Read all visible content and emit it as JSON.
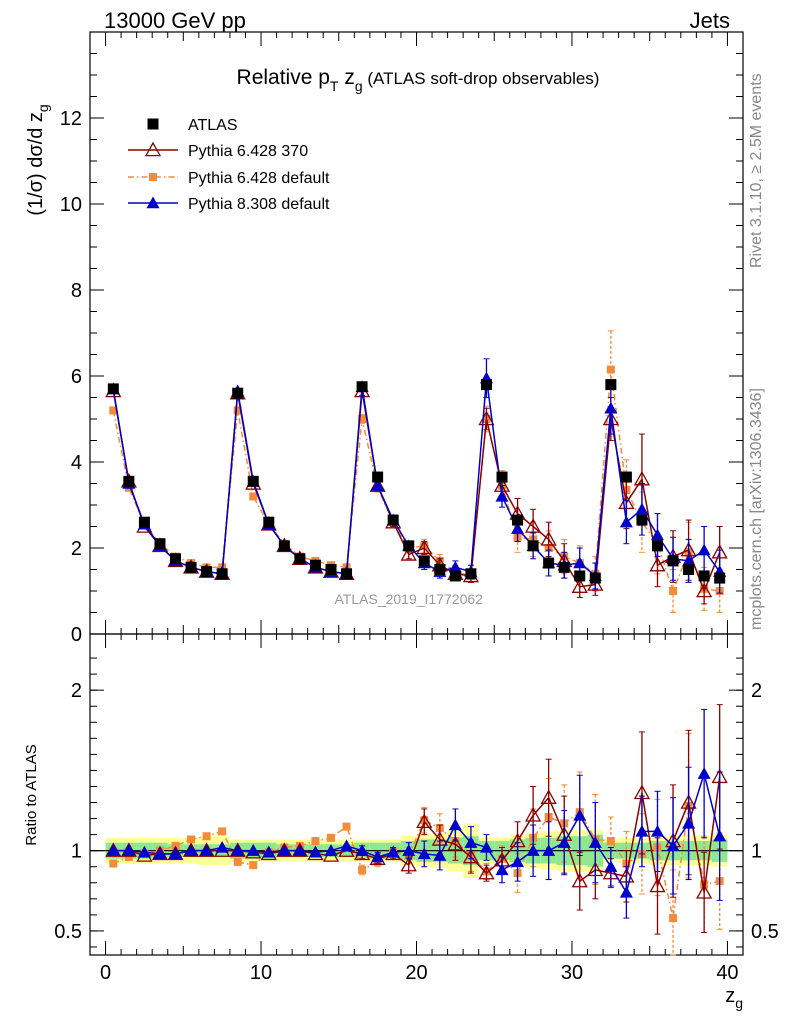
{
  "header": {
    "left": "13000 GeV pp",
    "right": "Jets"
  },
  "side_labels": {
    "rivet": "Rivet 3.1.10, ≥ 2.5M events",
    "mcplots": "mcplots.cern.ch [arXiv:1306.3436]"
  },
  "chart_data": {
    "type": "scatter",
    "title": {
      "prefix": "Relative p",
      "sub1": "T",
      "mid": " z",
      "sub2": "g",
      "suffix": " (ATLAS soft-drop observables)"
    },
    "ylabel_main": {
      "pre": "(1/σ) dσ/d z",
      "sub": "g"
    },
    "ylabel_ratio": "Ratio to ATLAS",
    "xlabel": {
      "pre": "z",
      "sub": "g"
    },
    "watermark": "ATLAS_2019_I1772062",
    "xlim": [
      -1,
      41
    ],
    "ylim_main": [
      0,
      14
    ],
    "ylim_ratio": [
      0.35,
      2.35
    ],
    "x_ticks": [
      0,
      10,
      20,
      30,
      40
    ],
    "x_tick_labels": [
      "0",
      "10",
      "20",
      "30",
      "40"
    ],
    "y_ticks_main": [
      0,
      2,
      4,
      6,
      8,
      10,
      12
    ],
    "y_tick_labels_main": [
      "0",
      "2",
      "4",
      "6",
      "8",
      "10",
      "12"
    ],
    "y_ticks_ratio": [
      0.5,
      1,
      2
    ],
    "y_tick_labels_ratio": [
      "0.5",
      "1",
      "2"
    ],
    "x": [
      0.5,
      1.5,
      2.5,
      3.5,
      4.5,
      5.5,
      6.5,
      7.5,
      8.5,
      9.5,
      10.5,
      11.5,
      12.5,
      13.5,
      14.5,
      15.5,
      16.5,
      17.5,
      18.5,
      19.5,
      20.5,
      21.5,
      22.5,
      23.5,
      24.5,
      25.5,
      26.5,
      27.5,
      28.5,
      29.5,
      30.5,
      31.5,
      32.5,
      33.5,
      34.5,
      35.5,
      36.5,
      37.5,
      38.5,
      39.5
    ],
    "data_band": {
      "green": [
        0.05,
        0.05,
        0.05,
        0.05,
        0.04,
        0.04,
        0.04,
        0.04,
        0.05,
        0.05,
        0.05,
        0.04,
        0.04,
        0.04,
        0.04,
        0.04,
        0.05,
        0.05,
        0.05,
        0.06,
        0.07,
        0.07,
        0.08,
        0.09,
        0.06,
        0.06,
        0.07,
        0.08,
        0.08,
        0.09,
        0.09,
        0.1,
        0.05,
        0.05,
        0.05,
        0.06,
        0.06,
        0.06,
        0.06,
        0.07
      ],
      "yellow": [
        0.08,
        0.08,
        0.08,
        0.08,
        0.08,
        0.08,
        0.09,
        0.09,
        0.07,
        0.07,
        0.07,
        0.07,
        0.07,
        0.07,
        0.07,
        0.07,
        0.07,
        0.07,
        0.07,
        0.09,
        0.1,
        0.11,
        0.13,
        0.17,
        0.08,
        0.08,
        0.1,
        0.11,
        0.12,
        0.13,
        0.13,
        0.13,
        0.07,
        0.08,
        0.08,
        0.09,
        0.09,
        0.09,
        0.09,
        0.1
      ]
    },
    "series": [
      {
        "name": "ATLAS",
        "color": "#000000",
        "marker": "square",
        "line": "none",
        "values": [
          5.7,
          3.55,
          2.6,
          2.1,
          1.75,
          1.55,
          1.45,
          1.4,
          5.6,
          3.55,
          2.6,
          2.05,
          1.75,
          1.6,
          1.5,
          1.4,
          5.75,
          3.65,
          2.65,
          2.05,
          1.7,
          1.5,
          1.35,
          1.4,
          5.8,
          3.65,
          2.65,
          2.05,
          1.65,
          1.55,
          1.35,
          1.3,
          5.8,
          3.65,
          2.65,
          2.05,
          1.7,
          1.5,
          1.35,
          1.3
        ],
        "errors": [
          0.05,
          0.05,
          0.04,
          0.03,
          0.03,
          0.03,
          0.03,
          0.03,
          0.05,
          0.05,
          0.04,
          0.04,
          0.03,
          0.03,
          0.03,
          0.03,
          0.07,
          0.06,
          0.05,
          0.05,
          0.05,
          0.05,
          0.05,
          0.05,
          0.1,
          0.08,
          0.07,
          0.06,
          0.06,
          0.06,
          0.06,
          0.06,
          0.1,
          0.09,
          0.08,
          0.07,
          0.07,
          0.07,
          0.07,
          0.07
        ],
        "ratio": [
          1,
          1,
          1,
          1,
          1,
          1,
          1,
          1,
          1,
          1,
          1,
          1,
          1,
          1,
          1,
          1,
          1,
          1,
          1,
          1,
          1,
          1,
          1,
          1,
          1,
          1,
          1,
          1,
          1,
          1,
          1,
          1,
          1,
          1,
          1,
          1,
          1,
          1,
          1,
          1
        ]
      },
      {
        "name": "Pythia 6.428 370",
        "color": "#8b0000",
        "marker": "triangle-open",
        "line": "solid",
        "values": [
          5.65,
          3.55,
          2.5,
          2.05,
          1.7,
          1.55,
          1.45,
          1.4,
          5.6,
          3.5,
          2.55,
          2.05,
          1.75,
          1.55,
          1.45,
          1.4,
          5.65,
          3.45,
          2.6,
          1.85,
          2.0,
          1.6,
          1.4,
          1.35,
          5.0,
          3.45,
          2.8,
          2.5,
          2.2,
          1.7,
          1.1,
          1.15,
          5.0,
          3.05,
          3.6,
          1.6,
          1.8,
          1.95,
          1.0,
          1.9
        ],
        "errors": [
          0.05,
          0.05,
          0.04,
          0.04,
          0.03,
          0.03,
          0.03,
          0.03,
          0.05,
          0.05,
          0.04,
          0.04,
          0.04,
          0.03,
          0.03,
          0.03,
          0.1,
          0.1,
          0.1,
          0.1,
          0.15,
          0.15,
          0.15,
          0.15,
          0.25,
          0.3,
          0.35,
          0.4,
          0.4,
          0.4,
          0.25,
          0.25,
          0.5,
          0.6,
          1.05,
          0.5,
          0.6,
          0.7,
          0.3,
          0.6
        ],
        "ratio": [
          1.0,
          1.0,
          0.97,
          0.98,
          0.98,
          1.0,
          1.0,
          1.0,
          1.0,
          0.99,
          0.98,
          1.0,
          1.0,
          0.98,
          0.97,
          1.0,
          0.98,
          0.95,
          0.98,
          0.91,
          1.18,
          1.07,
          1.04,
          0.96,
          0.86,
          0.94,
          1.06,
          1.22,
          1.33,
          1.1,
          0.81,
          0.88,
          0.86,
          0.84,
          1.36,
          0.78,
          1.06,
          1.3,
          0.74,
          1.46
        ],
        "ratio_err": [
          0.02,
          0.02,
          0.02,
          0.02,
          0.02,
          0.02,
          0.02,
          0.02,
          0.02,
          0.02,
          0.02,
          0.02,
          0.02,
          0.02,
          0.02,
          0.02,
          0.03,
          0.03,
          0.03,
          0.05,
          0.08,
          0.09,
          0.1,
          0.1,
          0.05,
          0.08,
          0.12,
          0.18,
          0.24,
          0.24,
          0.18,
          0.18,
          0.09,
          0.16,
          0.38,
          0.3,
          0.35,
          0.45,
          0.25,
          0.45
        ]
      },
      {
        "name": "Pythia 6.428 default",
        "color": "#f28c3a",
        "marker": "square-small",
        "line": "dashdot",
        "values": [
          5.2,
          3.4,
          2.55,
          2.1,
          1.8,
          1.65,
          1.55,
          1.55,
          5.2,
          3.2,
          2.55,
          2.1,
          1.8,
          1.7,
          1.6,
          1.55,
          5.0,
          3.4,
          2.6,
          2.0,
          2.05,
          1.7,
          1.45,
          1.35,
          5.0,
          3.45,
          2.25,
          2.2,
          2.0,
          1.8,
          1.65,
          1.4,
          6.15,
          3.35,
          2.6,
          2.1,
          1.0,
          1.9,
          1.05,
          1.0
        ],
        "errors": [
          0.05,
          0.05,
          0.04,
          0.04,
          0.03,
          0.03,
          0.03,
          0.03,
          0.05,
          0.05,
          0.04,
          0.04,
          0.04,
          0.04,
          0.04,
          0.04,
          0.1,
          0.1,
          0.1,
          0.1,
          0.15,
          0.15,
          0.15,
          0.15,
          0.3,
          0.35,
          0.35,
          0.4,
          0.4,
          0.4,
          0.4,
          0.4,
          0.9,
          0.7,
          0.7,
          0.7,
          0.5,
          0.7,
          0.5,
          0.5
        ],
        "ratio": [
          0.92,
          0.96,
          0.98,
          1.0,
          1.03,
          1.07,
          1.09,
          1.12,
          0.93,
          0.91,
          0.99,
          1.02,
          1.03,
          1.06,
          1.08,
          1.15,
          0.88,
          0.93,
          0.99,
          0.97,
          1.19,
          1.14,
          1.06,
          0.97,
          0.87,
          0.95,
          0.86,
          1.08,
          1.21,
          1.17,
          1.24,
          1.07,
          1.06,
          0.92,
          0.98,
          1.02,
          0.58,
          1.28,
          0.79,
          0.81
        ],
        "ratio_err": [
          0.02,
          0.02,
          0.02,
          0.02,
          0.02,
          0.02,
          0.02,
          0.02,
          0.02,
          0.02,
          0.02,
          0.02,
          0.02,
          0.02,
          0.02,
          0.02,
          0.03,
          0.03,
          0.03,
          0.05,
          0.08,
          0.09,
          0.1,
          0.1,
          0.05,
          0.08,
          0.12,
          0.18,
          0.24,
          0.24,
          0.25,
          0.28,
          0.15,
          0.2,
          0.25,
          0.3,
          0.3,
          0.45,
          0.3,
          0.3
        ]
      },
      {
        "name": "Pythia 8.308 default",
        "color": "#0000cc",
        "marker": "triangle",
        "line": "solid",
        "values": [
          5.7,
          3.5,
          2.55,
          2.05,
          1.7,
          1.55,
          1.45,
          1.4,
          5.65,
          3.55,
          2.55,
          2.05,
          1.75,
          1.55,
          1.45,
          1.4,
          5.75,
          3.45,
          2.65,
          2.05,
          1.65,
          1.45,
          1.55,
          1.45,
          5.95,
          3.2,
          2.45,
          2.05,
          1.65,
          1.6,
          1.65,
          1.35,
          5.25,
          2.6,
          2.9,
          2.3,
          1.75,
          1.7,
          1.95,
          1.45
        ],
        "errors": [
          0.05,
          0.05,
          0.04,
          0.04,
          0.03,
          0.03,
          0.03,
          0.03,
          0.05,
          0.05,
          0.04,
          0.04,
          0.04,
          0.03,
          0.03,
          0.03,
          0.1,
          0.1,
          0.1,
          0.1,
          0.15,
          0.15,
          0.15,
          0.15,
          0.45,
          0.25,
          0.3,
          0.3,
          0.3,
          0.3,
          0.35,
          0.3,
          0.6,
          0.5,
          0.6,
          0.5,
          0.5,
          0.5,
          0.55,
          0.5
        ],
        "ratio": [
          1.0,
          1.0,
          0.99,
          0.98,
          0.98,
          1.0,
          1.0,
          1.02,
          1.0,
          1.0,
          0.99,
          1.0,
          1.0,
          0.99,
          1.0,
          1.03,
          1.0,
          0.96,
          0.99,
          1.0,
          0.98,
          0.97,
          1.16,
          1.05,
          1.02,
          0.88,
          0.93,
          1.0,
          1.0,
          1.05,
          1.22,
          1.05,
          0.9,
          0.74,
          1.12,
          1.12,
          1.03,
          1.17,
          1.48,
          1.09
        ],
        "ratio_err": [
          0.02,
          0.02,
          0.02,
          0.02,
          0.02,
          0.02,
          0.02,
          0.02,
          0.02,
          0.02,
          0.02,
          0.02,
          0.02,
          0.02,
          0.02,
          0.02,
          0.03,
          0.03,
          0.03,
          0.05,
          0.08,
          0.09,
          0.1,
          0.1,
          0.08,
          0.08,
          0.12,
          0.16,
          0.18,
          0.2,
          0.25,
          0.25,
          0.12,
          0.16,
          0.22,
          0.25,
          0.3,
          0.35,
          0.4,
          0.4
        ]
      }
    ],
    "legend": {
      "position": "top-left"
    }
  }
}
